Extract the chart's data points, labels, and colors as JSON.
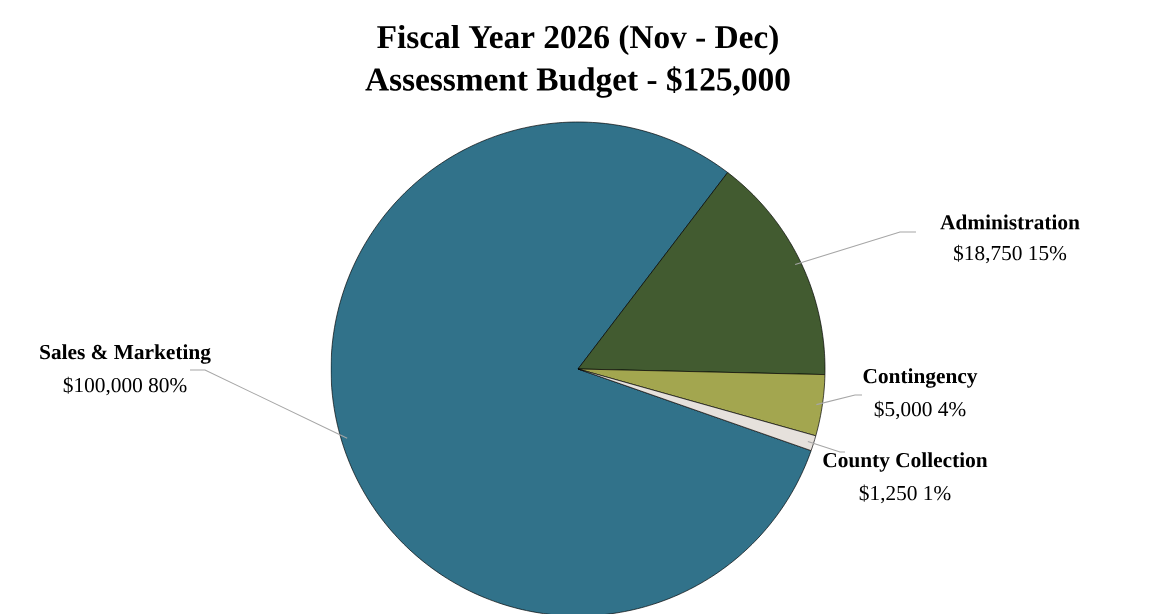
{
  "chart_data": {
    "type": "pie",
    "title": "Fiscal Year 2026 (Nov - Dec)",
    "subtitle": "Assessment Budget - $125,000",
    "categories": [
      "Sales & Marketing",
      "Administration",
      "Contingency",
      "County Collection"
    ],
    "values": [
      100000,
      18750,
      5000,
      1250
    ],
    "value_labels": [
      "$100,000 80%",
      "$18,750 15%",
      "$5,000 4%",
      "$1,250 1%"
    ],
    "colors": [
      "#31728a",
      "#425b30",
      "#a3a64f",
      "#e6e1dc"
    ]
  }
}
